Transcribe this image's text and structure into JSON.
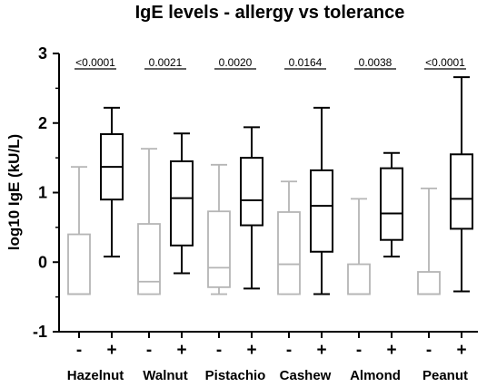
{
  "chart_data": {
    "type": "boxplot",
    "title": "IgE levels - allergy vs tolerance",
    "xlabel": "",
    "ylabel": "log10 IgE (kU/L)",
    "ylim": [
      -1,
      3
    ],
    "yticks": [
      "-1",
      "0",
      "1",
      "2",
      "3"
    ],
    "grid": false,
    "colors": {
      "tolerance": "#b5b5b5",
      "allergy": "#000000"
    },
    "groups": [
      {
        "name": "Hazelnut",
        "p_value": "<0.0001",
        "boxes": [
          {
            "sign": "-",
            "status": "tolerance",
            "min": -0.46,
            "q1": -0.46,
            "median": -0.46,
            "q3": 0.4,
            "max": 1.37
          },
          {
            "sign": "+",
            "status": "allergy",
            "min": 0.08,
            "q1": 0.9,
            "median": 1.37,
            "q3": 1.84,
            "max": 2.22
          }
        ]
      },
      {
        "name": "Walnut",
        "p_value": "0.0021",
        "boxes": [
          {
            "sign": "-",
            "status": "tolerance",
            "min": -0.46,
            "q1": -0.46,
            "median": -0.28,
            "q3": 0.55,
            "max": 1.63
          },
          {
            "sign": "+",
            "status": "allergy",
            "min": -0.16,
            "q1": 0.24,
            "median": 0.92,
            "q3": 1.45,
            "max": 1.85
          }
        ]
      },
      {
        "name": "Pistachio",
        "p_value": "0.0020",
        "boxes": [
          {
            "sign": "-",
            "status": "tolerance",
            "min": -0.46,
            "q1": -0.36,
            "median": -0.08,
            "q3": 0.73,
            "max": 1.4
          },
          {
            "sign": "+",
            "status": "allergy",
            "min": -0.38,
            "q1": 0.53,
            "median": 0.89,
            "q3": 1.5,
            "max": 1.94
          }
        ]
      },
      {
        "name": "Cashew",
        "p_value": "0.0164",
        "boxes": [
          {
            "sign": "-",
            "status": "tolerance",
            "min": -0.46,
            "q1": -0.46,
            "median": -0.03,
            "q3": 0.72,
            "max": 1.16
          },
          {
            "sign": "+",
            "status": "allergy",
            "min": -0.46,
            "q1": 0.15,
            "median": 0.81,
            "q3": 1.32,
            "max": 2.22
          }
        ]
      },
      {
        "name": "Almond",
        "p_value": "0.0038",
        "boxes": [
          {
            "sign": "-",
            "status": "tolerance",
            "min": -0.46,
            "q1": -0.46,
            "median": -0.46,
            "q3": -0.03,
            "max": 0.91
          },
          {
            "sign": "+",
            "status": "allergy",
            "min": 0.08,
            "q1": 0.32,
            "median": 0.7,
            "q3": 1.35,
            "max": 1.57
          }
        ]
      },
      {
        "name": "Peanut",
        "p_value": "<0.0001",
        "boxes": [
          {
            "sign": "-",
            "status": "tolerance",
            "min": -0.46,
            "q1": -0.46,
            "median": -0.46,
            "q3": -0.14,
            "max": 1.06
          },
          {
            "sign": "+",
            "status": "allergy",
            "min": -0.42,
            "q1": 0.48,
            "median": 0.91,
            "q3": 1.55,
            "max": 2.66
          }
        ]
      }
    ]
  }
}
